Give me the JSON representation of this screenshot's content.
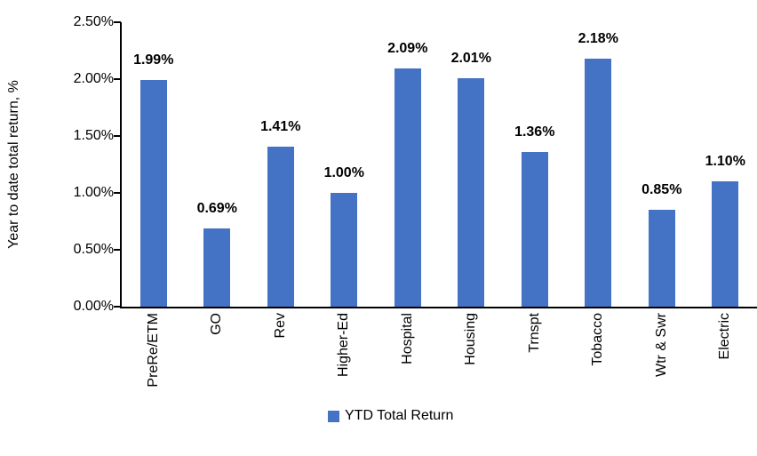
{
  "chart_data": {
    "type": "bar",
    "title": "",
    "categories": [
      "PreRe/ETM",
      "GO",
      "Rev",
      "Higher-Ed",
      "Hospital",
      "Housing",
      "Trnspt",
      "Tobacco",
      "Wtr & Swr",
      "Electric"
    ],
    "series": [
      {
        "name": "YTD Total Return",
        "values": [
          1.99,
          0.69,
          1.41,
          1.0,
          2.09,
          2.01,
          1.36,
          2.18,
          0.85,
          1.1
        ],
        "data_labels": [
          "1.99%",
          "0.69%",
          "1.41%",
          "1.00%",
          "2.09%",
          "2.01%",
          "1.36%",
          "2.18%",
          "0.85%",
          "1.10%"
        ],
        "color": "#4472C4"
      }
    ],
    "xlabel": "",
    "ylabel": "Year to date total return, %",
    "ylim": [
      0,
      2.5
    ],
    "ytick_step": 0.5,
    "ytick_labels": [
      "0.00%",
      "0.50%",
      "1.00%",
      "1.50%",
      "2.00%",
      "2.50%"
    ],
    "grid": false,
    "legend_position": "bottom",
    "data_labels_shown": true,
    "data_labels_bold": true
  },
  "legend": {
    "label": "YTD Total Return",
    "swatch_color": "#4472C4"
  },
  "colors": {
    "bar": "#4472C4",
    "axis": "#000000",
    "text": "#000000",
    "background": "#FFFFFF"
  }
}
